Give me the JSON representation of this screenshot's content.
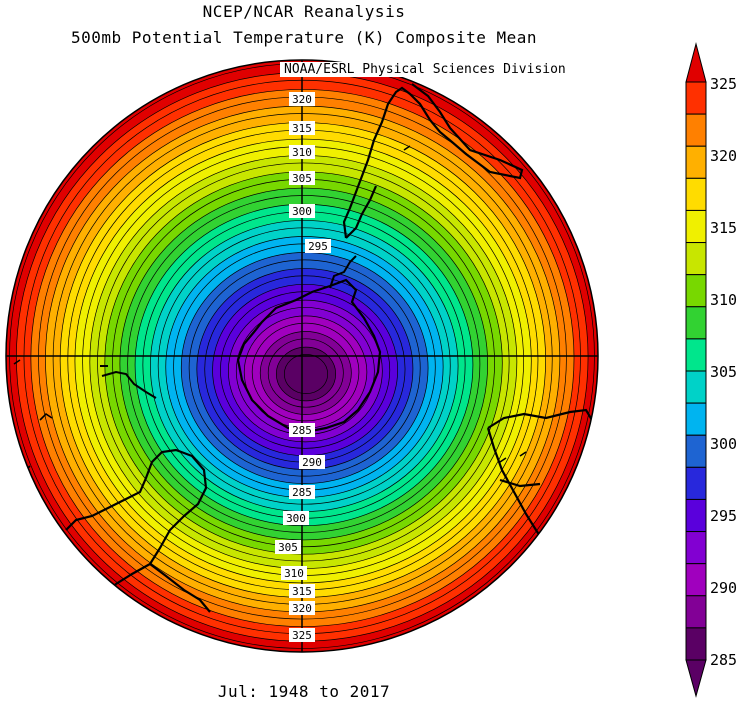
{
  "title_line1": "NCEP/NCAR Reanalysis",
  "title_line2": "500mb Potential Temperature (K) Composite Mean",
  "credit": "NOAA/ESRL Physical Sciences Division",
  "period": "Jul: 1948 to 2017",
  "colorbar": {
    "ticks": [
      "325",
      "320",
      "315",
      "310",
      "305",
      "300",
      "295",
      "290",
      "285"
    ],
    "colors": [
      "#e00000",
      "#ff3000",
      "#ff8000",
      "#ffb000",
      "#ffdc00",
      "#f0f000",
      "#c8e600",
      "#78d800",
      "#32d232",
      "#00e68c",
      "#00d2c8",
      "#00b4f0",
      "#1e64d2",
      "#2828dc",
      "#5a00dc",
      "#8200d2",
      "#a000be",
      "#820096",
      "#5a0064"
    ]
  },
  "map_labels": [
    {
      "text": "320"
    },
    {
      "text": "315"
    },
    {
      "text": "310"
    },
    {
      "text": "305"
    },
    {
      "text": "300"
    },
    {
      "text": "295"
    },
    {
      "text": "285"
    },
    {
      "text": "290"
    },
    {
      "text": "285"
    },
    {
      "text": "300"
    },
    {
      "text": "305"
    },
    {
      "text": "310"
    },
    {
      "text": "315"
    },
    {
      "text": "320"
    },
    {
      "text": "325"
    }
  ]
}
